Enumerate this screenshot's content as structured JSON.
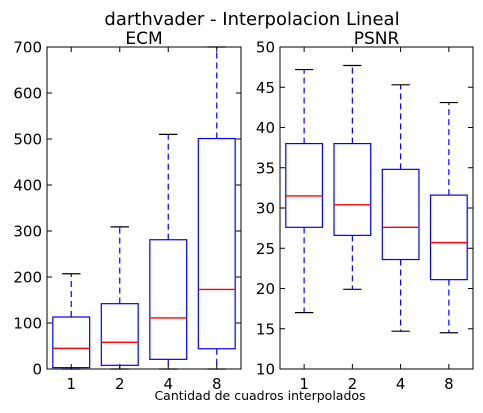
{
  "figure": {
    "suptitle": "darthvader - Interpolacion Lineal",
    "xlabel": "Cantidad de cuadros interpolados"
  },
  "colors": {
    "box": "#0000ff",
    "median": "#ff0000",
    "cap": "#000000",
    "axes": "#000000"
  },
  "chart_data": [
    {
      "type": "box",
      "title": "ECM",
      "categories": [
        "1",
        "2",
        "4",
        "8"
      ],
      "ylim": [
        0,
        700
      ],
      "yticks": [
        0,
        100,
        200,
        300,
        400,
        500,
        600,
        700
      ],
      "boxes": [
        {
          "whislo": 0,
          "q1": 3,
          "med": 45,
          "q3": 113,
          "whishi": 207
        },
        {
          "whislo": 0,
          "q1": 8,
          "med": 58,
          "q3": 142,
          "whishi": 309
        },
        {
          "whislo": 0,
          "q1": 21,
          "med": 111,
          "q3": 281,
          "whishi": 510
        },
        {
          "whislo": 0,
          "q1": 44,
          "med": 173,
          "q3": 501,
          "whishi": 700
        }
      ],
      "grid": false
    },
    {
      "type": "box",
      "title": "PSNR",
      "categories": [
        "1",
        "2",
        "4",
        "8"
      ],
      "ylim": [
        10,
        50
      ],
      "yticks": [
        10,
        15,
        20,
        25,
        30,
        35,
        40,
        45,
        50
      ],
      "boxes": [
        {
          "whislo": 17,
          "q1": 27.6,
          "med": 31.5,
          "q3": 38,
          "whishi": 47.2
        },
        {
          "whislo": 19.9,
          "q1": 26.6,
          "med": 30.4,
          "q3": 38,
          "whishi": 47.7
        },
        {
          "whislo": 14.7,
          "q1": 23.6,
          "med": 27.6,
          "q3": 34.8,
          "whishi": 45.3
        },
        {
          "whislo": 14.5,
          "q1": 21.1,
          "med": 25.7,
          "q3": 31.6,
          "whishi": 43.1
        }
      ],
      "grid": false
    }
  ]
}
